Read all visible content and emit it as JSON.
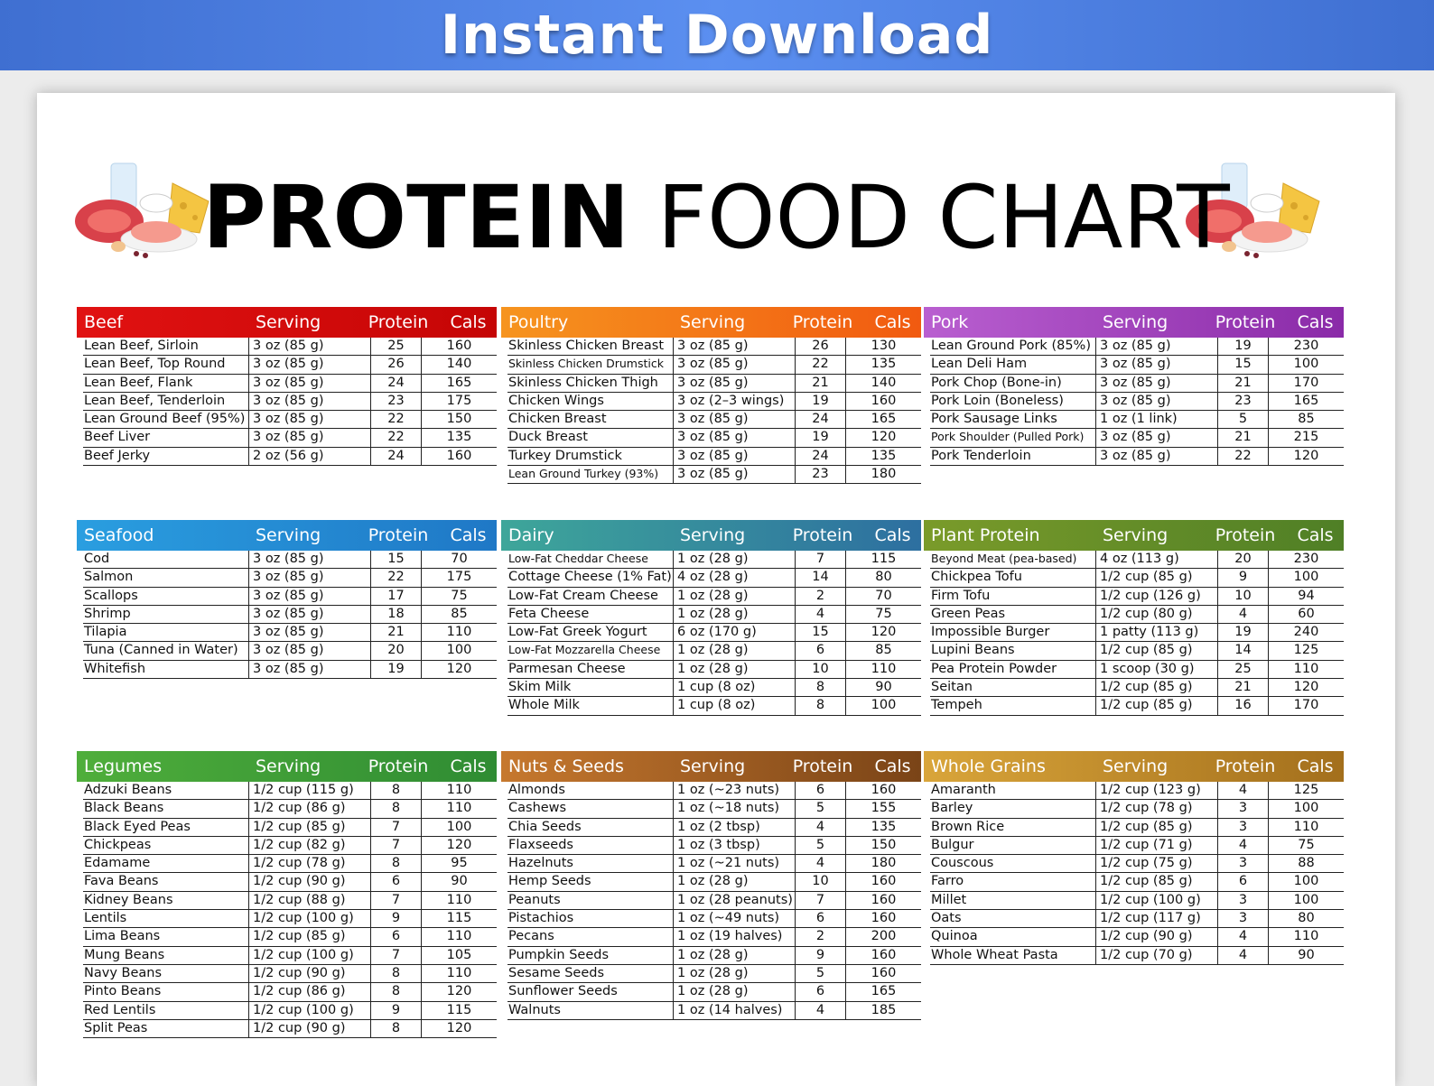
{
  "banner": {
    "text": "Instant Download"
  },
  "title": {
    "bold": "PROTEIN",
    "light": "FOOD CHART"
  },
  "headers": {
    "serving": "Serving",
    "protein": "Protein",
    "cals": "Cals"
  },
  "tables": [
    {
      "category": "Beef",
      "gradient": [
        "#e11212",
        "#c50505"
      ],
      "rows": [
        [
          "Lean Beef, Sirloin",
          "3 oz (85 g)",
          "25",
          "160"
        ],
        [
          "Lean Beef, Top Round",
          "3 oz (85 g)",
          "26",
          "140"
        ],
        [
          "Lean Beef, Flank",
          "3 oz (85 g)",
          "24",
          "165"
        ],
        [
          "Lean Beef, Tenderloin",
          "3 oz (85 g)",
          "23",
          "175"
        ],
        [
          "Lean Ground Beef (95%)",
          "3 oz (85 g)",
          "22",
          "150"
        ],
        [
          "Beef Liver",
          "3 oz (85 g)",
          "22",
          "135"
        ],
        [
          "Beef Jerky",
          "2 oz (56 g)",
          "24",
          "160"
        ]
      ]
    },
    {
      "category": "Poultry",
      "gradient": [
        "#f6941f",
        "#f15a10"
      ],
      "rows": [
        [
          "Skinless Chicken Breast",
          "3 oz (85 g)",
          "26",
          "130"
        ],
        [
          "Skinless Chicken Drumstick",
          "3 oz (85 g)",
          "22",
          "135"
        ],
        [
          "Skinless Chicken Thigh",
          "3 oz (85 g)",
          "21",
          "140"
        ],
        [
          "Chicken Wings",
          "3 oz (2–3 wings)",
          "19",
          "160"
        ],
        [
          "Chicken Breast",
          "3 oz (85 g)",
          "24",
          "165"
        ],
        [
          "Duck Breast",
          "3 oz (85 g)",
          "19",
          "120"
        ],
        [
          "Turkey Drumstick",
          "3 oz (85 g)",
          "24",
          "135"
        ],
        [
          "Lean Ground Turkey (93%)",
          "3 oz (85 g)",
          "23",
          "180"
        ]
      ]
    },
    {
      "category": "Pork",
      "gradient": [
        "#b95fd0",
        "#8a2aa8"
      ],
      "rows": [
        [
          "Lean Ground Pork (85%)",
          "3 oz (85 g)",
          "19",
          "230"
        ],
        [
          "Lean Deli Ham",
          "3 oz (85 g)",
          "15",
          "100"
        ],
        [
          "Pork Chop (Bone-in)",
          "3 oz (85 g)",
          "21",
          "170"
        ],
        [
          "Pork Loin (Boneless)",
          "3 oz (85 g)",
          "23",
          "165"
        ],
        [
          "Pork Sausage Links",
          "1 oz (1 link)",
          "5",
          "85"
        ],
        [
          "Pork Shoulder (Pulled Pork)",
          "3 oz (85 g)",
          "21",
          "215"
        ],
        [
          "Pork Tenderloin",
          "3 oz (85 g)",
          "22",
          "120"
        ]
      ]
    },
    {
      "category": "Seafood",
      "gradient": [
        "#2a9ee0",
        "#1f78c6"
      ],
      "rows": [
        [
          "Cod",
          "3 oz (85 g)",
          "15",
          "70"
        ],
        [
          "Salmon",
          "3 oz (85 g)",
          "22",
          "175"
        ],
        [
          "Scallops",
          "3 oz (85 g)",
          "17",
          "75"
        ],
        [
          "Shrimp",
          "3 oz (85 g)",
          "18",
          "85"
        ],
        [
          "Tilapia",
          "3 oz (85 g)",
          "21",
          "110"
        ],
        [
          "Tuna (Canned in Water)",
          "3 oz (85 g)",
          "20",
          "100"
        ],
        [
          "Whitefish",
          "3 oz (85 g)",
          "19",
          "120"
        ]
      ]
    },
    {
      "category": "Dairy",
      "gradient": [
        "#3ea69a",
        "#2d6fa0"
      ],
      "rows": [
        [
          "Low-Fat Cheddar Cheese",
          "1 oz (28 g)",
          "7",
          "115"
        ],
        [
          "Cottage Cheese (1% Fat)",
          "4 oz (28 g)",
          "14",
          "80"
        ],
        [
          "Low-Fat Cream Cheese",
          "1 oz (28 g)",
          "2",
          "70"
        ],
        [
          "Feta Cheese",
          "1 oz (28 g)",
          "4",
          "75"
        ],
        [
          "Low-Fat Greek Yogurt",
          "6 oz (170 g)",
          "15",
          "120"
        ],
        [
          "Low-Fat Mozzarella Cheese",
          "1 oz (28 g)",
          "6",
          "85"
        ],
        [
          "Parmesan Cheese",
          "1 oz (28 g)",
          "10",
          "110"
        ],
        [
          "Skim Milk",
          "1 cup (8 oz)",
          "8",
          "90"
        ],
        [
          "Whole Milk",
          "1 cup (8 oz)",
          "8",
          "100"
        ]
      ]
    },
    {
      "category": "Plant Protein",
      "gradient": [
        "#7a9b2a",
        "#4f7f26"
      ],
      "rows": [
        [
          "Beyond Meat (pea-based)",
          "4 oz (113 g)",
          "20",
          "230"
        ],
        [
          "Chickpea Tofu",
          "1/2 cup (85 g)",
          "9",
          "100"
        ],
        [
          "Firm Tofu",
          "1/2 cup (126 g)",
          "10",
          "94"
        ],
        [
          "Green Peas",
          "1/2 cup (80 g)",
          "4",
          "60"
        ],
        [
          "Impossible Burger",
          "1 patty (113 g)",
          "19",
          "240"
        ],
        [
          "Lupini Beans",
          "1/2 cup (85 g)",
          "14",
          "125"
        ],
        [
          "Pea Protein Powder",
          "1 scoop (30 g)",
          "25",
          "110"
        ],
        [
          "Seitan",
          "1/2 cup (85 g)",
          "21",
          "120"
        ],
        [
          "Tempeh",
          "1/2 cup (85 g)",
          "16",
          "170"
        ]
      ]
    },
    {
      "category": "Legumes",
      "gradient": [
        "#4fae3b",
        "#2f8c33"
      ],
      "rows": [
        [
          "Adzuki Beans",
          "1/2 cup (115 g)",
          "8",
          "110"
        ],
        [
          "Black Beans",
          "1/2 cup (86 g)",
          "8",
          "110"
        ],
        [
          "Black Eyed Peas",
          "1/2 cup (85 g)",
          "7",
          "100"
        ],
        [
          "Chickpeas",
          "1/2 cup (82 g)",
          "7",
          "120"
        ],
        [
          "Edamame",
          "1/2 cup (78 g)",
          "8",
          "95"
        ],
        [
          "Fava Beans",
          "1/2 cup (90 g)",
          "6",
          "90"
        ],
        [
          "Kidney Beans",
          "1/2 cup (88 g)",
          "7",
          "110"
        ],
        [
          "Lentils",
          "1/2 cup (100 g)",
          "9",
          "115"
        ],
        [
          "Lima Beans",
          "1/2 cup (85 g)",
          "6",
          "110"
        ],
        [
          "Mung Beans",
          "1/2 cup (100 g)",
          "7",
          "105"
        ],
        [
          "Navy Beans",
          "1/2 cup (90 g)",
          "8",
          "110"
        ],
        [
          "Pinto Beans",
          "1/2 cup (86 g)",
          "8",
          "120"
        ],
        [
          "Red Lentils",
          "1/2 cup (100 g)",
          "9",
          "115"
        ],
        [
          "Split Peas",
          "1/2 cup (90 g)",
          "8",
          "120"
        ]
      ]
    },
    {
      "category": "Nuts & Seeds",
      "gradient": [
        "#c6782e",
        "#7a4417"
      ],
      "rows": [
        [
          "Almonds",
          "1 oz (~23 nuts)",
          "6",
          "160"
        ],
        [
          "Cashews",
          "1 oz (~18 nuts)",
          "5",
          "155"
        ],
        [
          "Chia Seeds",
          "1 oz (2 tbsp)",
          "4",
          "135"
        ],
        [
          "Flaxseeds",
          "1 oz (3 tbsp)",
          "5",
          "150"
        ],
        [
          "Hazelnuts",
          "1 oz (~21 nuts)",
          "4",
          "180"
        ],
        [
          "Hemp Seeds",
          "1 oz (28 g)",
          "10",
          "160"
        ],
        [
          "Peanuts",
          "1 oz (28 peanuts)",
          "7",
          "160"
        ],
        [
          "Pistachios",
          "1 oz (~49 nuts)",
          "6",
          "160"
        ],
        [
          "Pecans",
          "1 oz (19 halves)",
          "2",
          "200"
        ],
        [
          "Pumpkin Seeds",
          "1 oz (28 g)",
          "9",
          "160"
        ],
        [
          "Sesame Seeds",
          "1 oz (28 g)",
          "5",
          "160"
        ],
        [
          "Sunflower Seeds",
          "1 oz (28 g)",
          "6",
          "165"
        ],
        [
          "Walnuts",
          "1 oz (14 halves)",
          "4",
          "185"
        ]
      ]
    },
    {
      "category": "Whole Grains",
      "gradient": [
        "#d9a53a",
        "#a36f1c"
      ],
      "rows": [
        [
          "Amaranth",
          "1/2 cup (123 g)",
          "4",
          "125"
        ],
        [
          "Barley",
          "1/2 cup (78 g)",
          "3",
          "100"
        ],
        [
          "Brown Rice",
          "1/2 cup (85 g)",
          "3",
          "110"
        ],
        [
          "Bulgur",
          "1/2 cup (71 g)",
          "4",
          "75"
        ],
        [
          "Couscous",
          "1/2 cup (75 g)",
          "3",
          "88"
        ],
        [
          "Farro",
          "1/2 cup (85 g)",
          "6",
          "100"
        ],
        [
          "Millet",
          "1/2 cup (100 g)",
          "3",
          "100"
        ],
        [
          "Oats",
          "1/2 cup (117 g)",
          "3",
          "80"
        ],
        [
          "Quinoa",
          "1/2 cup (90 g)",
          "4",
          "110"
        ],
        [
          "Whole Wheat Pasta",
          "1/2 cup (70 g)",
          "4",
          "90"
        ]
      ]
    }
  ]
}
